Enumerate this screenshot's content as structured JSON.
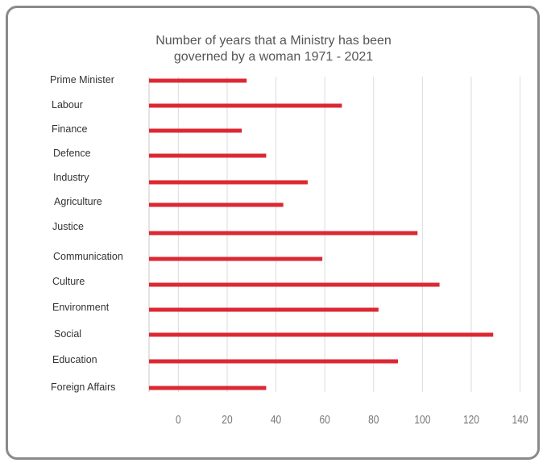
{
  "chart_data": {
    "type": "bar",
    "orientation": "horizontal",
    "title_line1": "Number of years that a Ministry has been",
    "title_line2": "governed by a woman 1971 - 2021",
    "categories": [
      "Prime Minister",
      "Labour",
      "Finance",
      "Defence",
      "Industry",
      "Agriculture",
      "Justice",
      "Communication",
      "Culture",
      "Environment",
      "Social",
      "Education",
      "Foreign Affairs"
    ],
    "values": [
      28,
      67,
      26,
      36,
      53,
      43,
      98,
      59,
      107,
      82,
      129,
      90,
      36
    ],
    "xlim": [
      -12,
      140
    ],
    "x_ticks": [
      0,
      20,
      40,
      60,
      80,
      100,
      120,
      140
    ],
    "x_tick_labels": [
      "0",
      "20",
      "40",
      "60",
      "80",
      "100",
      "120",
      "140"
    ],
    "grid": "vertical",
    "bar_color": "#dc2833",
    "grid_color": "#dcdcdc"
  }
}
